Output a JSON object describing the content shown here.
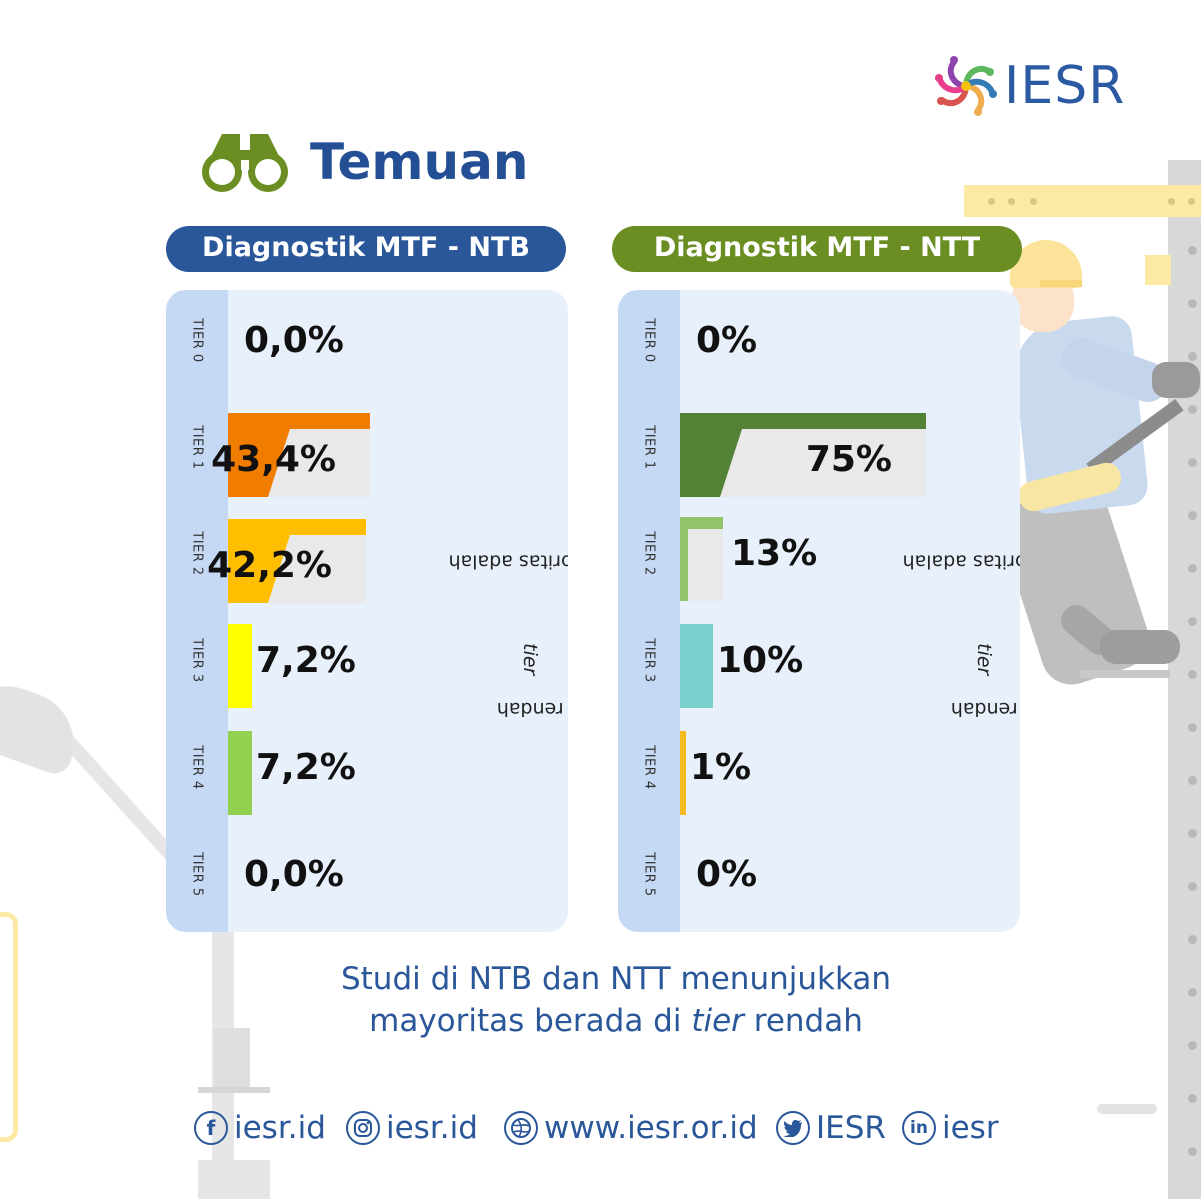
{
  "brand": {
    "logo_text": "IESR"
  },
  "title": "Temuan",
  "summary": {
    "line1": "Studi di NTB dan NTT menunjukkan",
    "line2_before": "mayoritas berada di ",
    "line2_italic": "tier",
    "line2_after": " rendah"
  },
  "footer": {
    "facebook": "iesr.id",
    "instagram": "iesr.id",
    "website": "www.iesr.or.id",
    "twitter": "IESR",
    "linkedin": "iesr"
  },
  "colors": {
    "ntb_header": "#2a5799",
    "ntt_header": "#6b8e23",
    "tier1_ntb": "#f07c00",
    "tier2_ntb": "#ffbf00",
    "tier3_ntb": "#ffff00",
    "tier4_ntb": "#92d050",
    "tier1_ntt": "#538135",
    "tier2_ntt": "#92c36b",
    "tier3_ntt": "#7ccfcf",
    "tier4_ntt": "#f4bb20"
  },
  "chart_data": [
    {
      "type": "bar",
      "title": "Diagnostik MTF - NTB",
      "categories": [
        "TIER 0",
        "TIER 1",
        "TIER 2",
        "TIER 3",
        "TIER 4",
        "TIER 5"
      ],
      "values": [
        0.0,
        43.4,
        42.2,
        7.2,
        7.2,
        0.0
      ],
      "value_labels": [
        "0,0%",
        "43,4%",
        "42,2%",
        "7,2%",
        "7,2%",
        "0,0%"
      ],
      "side_note": {
        "before": "Mayoritas adalah ",
        "italic": "tier",
        "after": " rendah"
      }
    },
    {
      "type": "bar",
      "title": "Diagnostik MTF - NTT",
      "categories": [
        "TIER 0",
        "TIER 1",
        "TIER 2",
        "TIER 3",
        "TIER 4",
        "TIER 5"
      ],
      "values": [
        0,
        75,
        13,
        10,
        1,
        0
      ],
      "value_labels": [
        "0%",
        "75%",
        "13%",
        "10%",
        "1%",
        "0%"
      ],
      "side_note": {
        "before": "Mayoritas adalah ",
        "italic": "tier",
        "after": " rendah"
      }
    }
  ]
}
